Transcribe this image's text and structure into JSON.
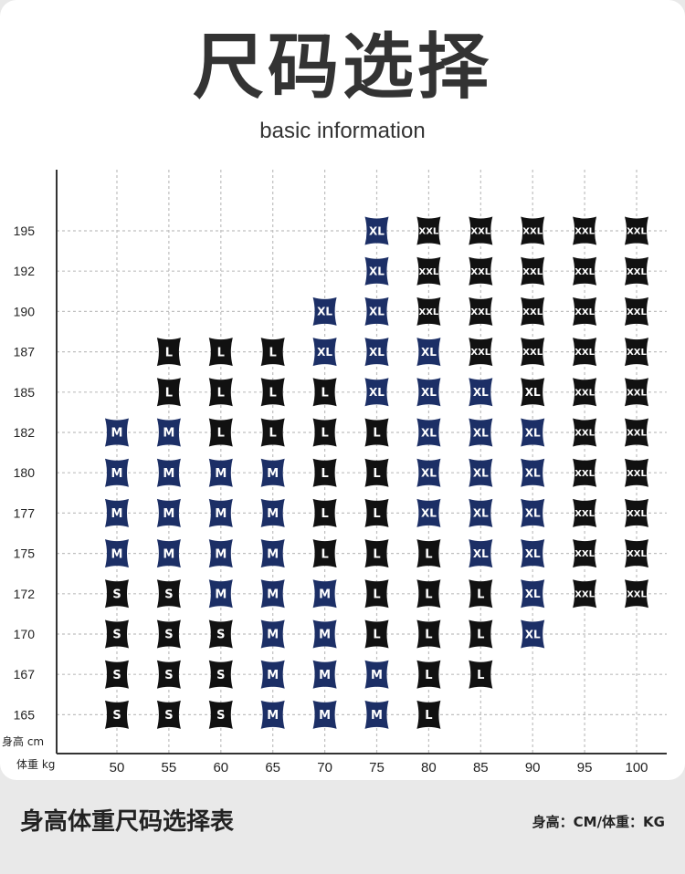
{
  "header": {
    "title": "尺码选择",
    "subtitle": "basic information"
  },
  "footer": {
    "caption": "身高体重尺码选择表",
    "units": "身高：CM/体重：KG"
  },
  "colors": {
    "dark_tag": "#111111",
    "navy_tag": "#1c2f66",
    "grid": "#bfbfbf",
    "axis": "#333333"
  },
  "chart_data": {
    "type": "table",
    "ylabel": "身高 cm",
    "xlabel": "体重 kg",
    "x": [
      50,
      55,
      60,
      65,
      70,
      75,
      80,
      85,
      90,
      95,
      100
    ],
    "y": [
      195,
      192,
      190,
      187,
      185,
      182,
      180,
      177,
      175,
      172,
      170,
      167,
      165
    ],
    "cells": [
      [
        "",
        "",
        "",
        "",
        "",
        "XL",
        "XXL",
        "XXL",
        "XXL",
        "XXL",
        "XXL"
      ],
      [
        "",
        "",
        "",
        "",
        "",
        "XL",
        "XXL",
        "XXL",
        "XXL",
        "XXL",
        "XXL"
      ],
      [
        "",
        "",
        "",
        "",
        "XL",
        "XL",
        "XXL",
        "XXL",
        "XXL",
        "XXL",
        "XXL"
      ],
      [
        "",
        "L",
        "L",
        "L",
        "XL",
        "XL",
        "XL",
        "XXL",
        "XXL",
        "XXL",
        "XXL"
      ],
      [
        "",
        "L",
        "L",
        "L",
        "L",
        "XL",
        "XL",
        "XL",
        "XL",
        "XXL",
        "XXL"
      ],
      [
        "M",
        "M",
        "L",
        "L",
        "L",
        "L",
        "XL",
        "XL",
        "XL",
        "XXL",
        "XXL"
      ],
      [
        "M",
        "M",
        "M",
        "M",
        "L",
        "L",
        "XL",
        "XL",
        "XL",
        "XXL",
        "XXL"
      ],
      [
        "M",
        "M",
        "M",
        "M",
        "L",
        "L",
        "XL",
        "XL",
        "XL",
        "XXL",
        "XXL"
      ],
      [
        "M",
        "M",
        "M",
        "M",
        "L",
        "L",
        "L",
        "XL",
        "XL",
        "XXL",
        "XXL"
      ],
      [
        "S",
        "S",
        "M",
        "M",
        "M",
        "L",
        "L",
        "L",
        "XL",
        "XXL",
        "XXL"
      ],
      [
        "S",
        "S",
        "S",
        "M",
        "M",
        "L",
        "L",
        "L",
        "XL",
        "",
        ""
      ],
      [
        "S",
        "S",
        "S",
        "M",
        "M",
        "M",
        "L",
        "L",
        "",
        "",
        ""
      ],
      [
        "S",
        "S",
        "S",
        "M",
        "M",
        "M",
        "L",
        "",
        "",
        "",
        ""
      ]
    ],
    "colors": [
      [
        "",
        "",
        "",
        "",
        "",
        "navy",
        "dark",
        "dark",
        "dark",
        "dark",
        "dark"
      ],
      [
        "",
        "",
        "",
        "",
        "",
        "navy",
        "dark",
        "dark",
        "dark",
        "dark",
        "dark"
      ],
      [
        "",
        "",
        "",
        "",
        "navy",
        "navy",
        "dark",
        "dark",
        "dark",
        "dark",
        "dark"
      ],
      [
        "",
        "dark",
        "dark",
        "dark",
        "navy",
        "navy",
        "navy",
        "dark",
        "dark",
        "dark",
        "dark"
      ],
      [
        "",
        "dark",
        "dark",
        "dark",
        "dark",
        "navy",
        "navy",
        "navy",
        "dark",
        "dark",
        "dark"
      ],
      [
        "navy",
        "navy",
        "dark",
        "dark",
        "dark",
        "dark",
        "navy",
        "navy",
        "navy",
        "dark",
        "dark"
      ],
      [
        "navy",
        "navy",
        "navy",
        "navy",
        "dark",
        "dark",
        "navy",
        "navy",
        "navy",
        "dark",
        "dark"
      ],
      [
        "navy",
        "navy",
        "navy",
        "navy",
        "dark",
        "dark",
        "navy",
        "navy",
        "navy",
        "dark",
        "dark"
      ],
      [
        "navy",
        "navy",
        "navy",
        "navy",
        "dark",
        "dark",
        "dark",
        "navy",
        "navy",
        "dark",
        "dark"
      ],
      [
        "dark",
        "dark",
        "navy",
        "navy",
        "navy",
        "dark",
        "dark",
        "dark",
        "navy",
        "dark",
        "dark"
      ],
      [
        "dark",
        "dark",
        "dark",
        "navy",
        "navy",
        "dark",
        "dark",
        "dark",
        "navy",
        "",
        ""
      ],
      [
        "dark",
        "dark",
        "dark",
        "navy",
        "navy",
        "navy",
        "dark",
        "dark",
        "",
        "",
        ""
      ],
      [
        "dark",
        "dark",
        "dark",
        "navy",
        "navy",
        "navy",
        "dark",
        "",
        "",
        "",
        ""
      ]
    ],
    "grid": true
  }
}
